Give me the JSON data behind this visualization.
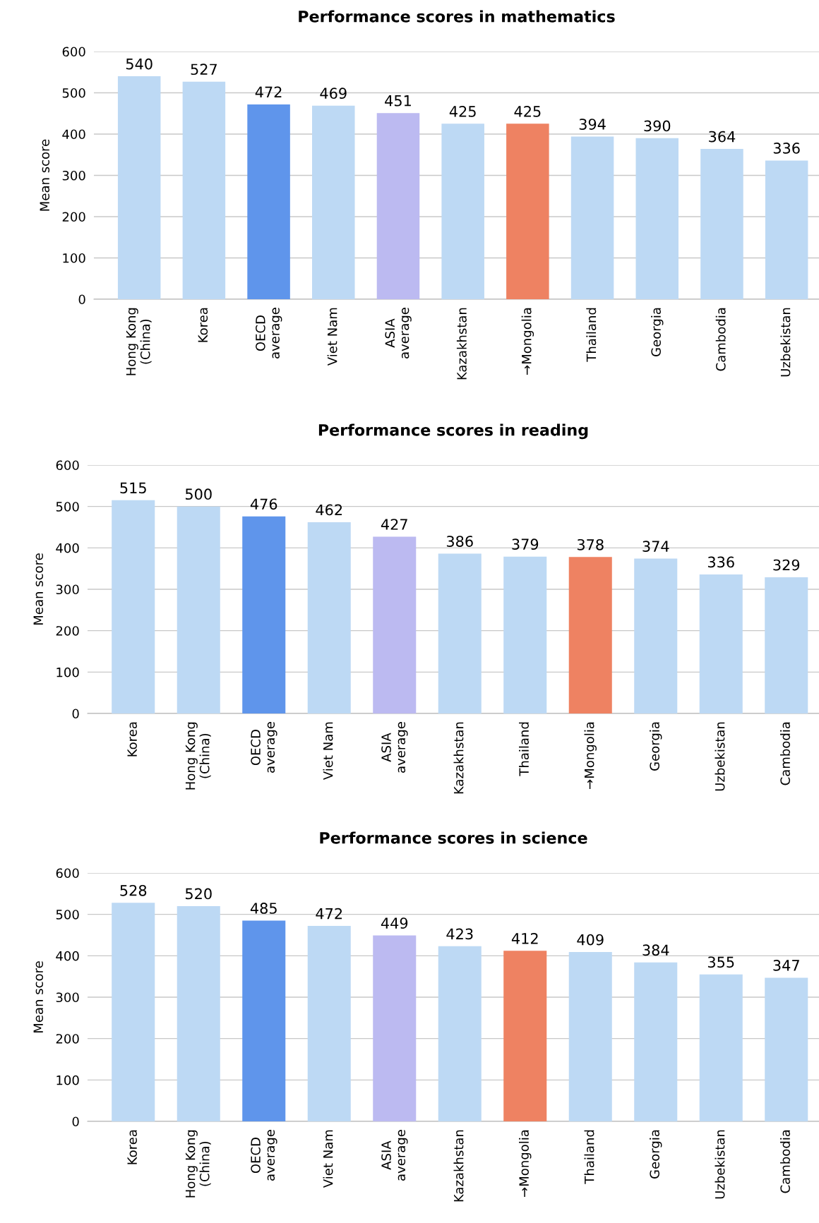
{
  "chart_data": [
    {
      "type": "bar",
      "title": "Performance scores in mathematics",
      "ylabel": "Mean score",
      "categories": [
        "Hong Kong\n(China)",
        "Korea",
        "OECD\naverage",
        "Viet Nam",
        "ASIA\naverage",
        "Kazakhstan",
        "→Mongolia",
        "Thailand",
        "Georgia",
        "Cambodia",
        "Uzbekistan"
      ],
      "values": [
        540,
        527,
        472,
        469,
        451,
        425,
        425,
        394,
        390,
        364,
        336
      ],
      "colors": [
        "#bdd9f4",
        "#bdd9f4",
        "#5f95eb",
        "#bdd9f4",
        "#bcbaf1",
        "#bdd9f4",
        "#ee8262",
        "#bdd9f4",
        "#bdd9f4",
        "#bdd9f4",
        "#bdd9f4"
      ],
      "ylim": [
        0,
        600
      ],
      "yticks": [
        0,
        100,
        200,
        300,
        400,
        500,
        600
      ],
      "grid": "y",
      "data_labels": true
    },
    {
      "type": "bar",
      "title": "Performance scores in reading",
      "ylabel": "Mean score",
      "categories": [
        "Korea",
        "Hong Kong\n(China)",
        "OECD\naverage",
        "Viet Nam",
        "ASIA\naverage",
        "Kazakhstan",
        "Thailand",
        "→Mongolia",
        "Georgia",
        "Uzbekistan",
        "Cambodia"
      ],
      "values": [
        515,
        500,
        476,
        462,
        427,
        386,
        379,
        378,
        374,
        336,
        329
      ],
      "colors": [
        "#bdd9f4",
        "#bdd9f4",
        "#5f95eb",
        "#bdd9f4",
        "#bcbaf1",
        "#bdd9f4",
        "#bdd9f4",
        "#ee8262",
        "#bdd9f4",
        "#bdd9f4",
        "#bdd9f4"
      ],
      "ylim": [
        0,
        600
      ],
      "yticks": [
        0,
        100,
        200,
        300,
        400,
        500,
        600
      ],
      "grid": "y",
      "data_labels": true
    },
    {
      "type": "bar",
      "title": "Performance scores in science",
      "ylabel": "Mean score",
      "categories": [
        "Korea",
        "Hong Kong\n(China)",
        "OECD\naverage",
        "Viet Nam",
        "ASIA\naverage",
        "Kazakhstan",
        "→Mongolia",
        "Thailand",
        "Georgia",
        "Uzbekistan",
        "Cambodia"
      ],
      "values": [
        528,
        520,
        485,
        472,
        449,
        423,
        412,
        409,
        384,
        355,
        347
      ],
      "colors": [
        "#bdd9f4",
        "#bdd9f4",
        "#5f95eb",
        "#bdd9f4",
        "#bcbaf1",
        "#bdd9f4",
        "#ee8262",
        "#bdd9f4",
        "#bdd9f4",
        "#bdd9f4",
        "#bdd9f4"
      ],
      "ylim": [
        0,
        600
      ],
      "yticks": [
        0,
        100,
        200,
        300,
        400,
        500,
        600
      ],
      "grid": "y",
      "data_labels": true
    }
  ]
}
